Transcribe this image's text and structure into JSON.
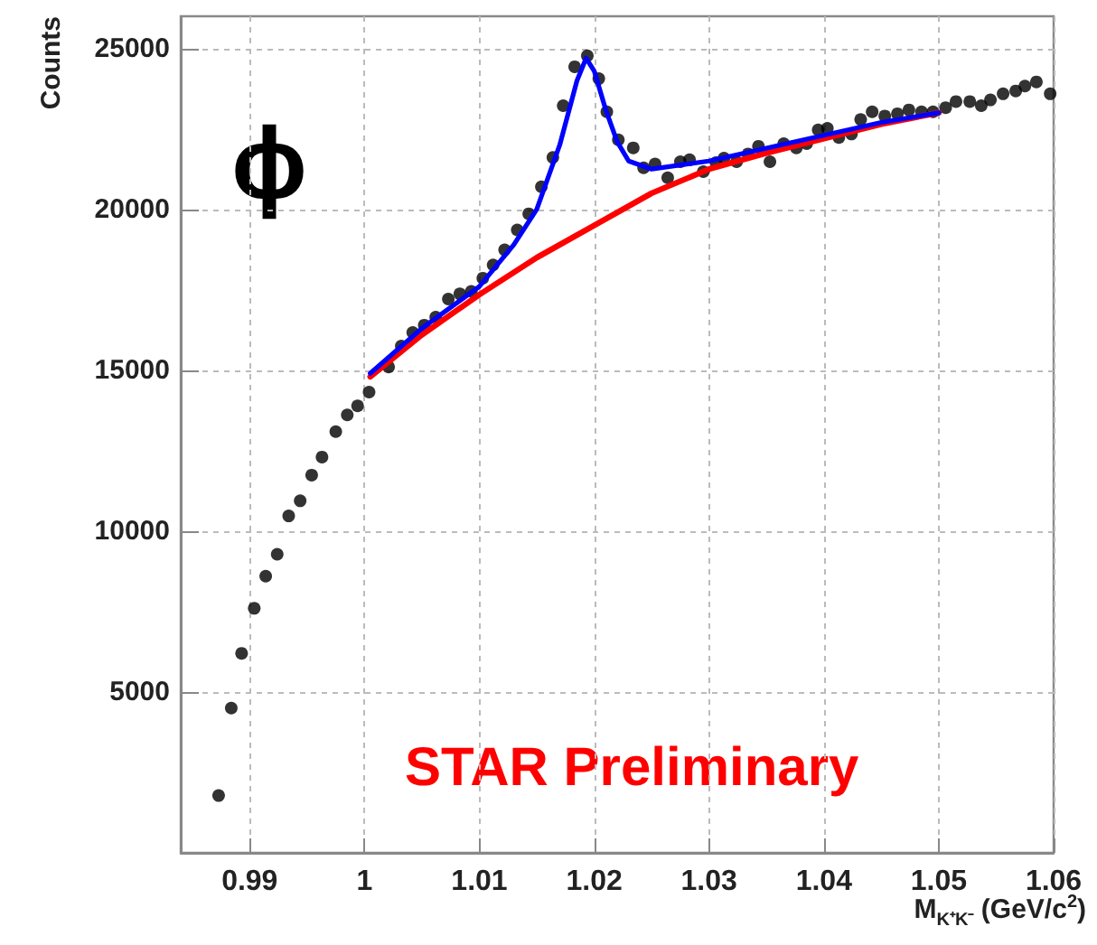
{
  "chart_data": {
    "type": "scatter",
    "xlabel": "M$_{K⁺K⁻}$ (GeV/c$^{2}$)",
    "ylabel": "Counts",
    "annotations": [
      "ϕ",
      "STAR Preliminary"
    ],
    "xlim": [
      0.984,
      1.06
    ],
    "ylim": [
      0,
      26000
    ],
    "xticks": [
      0.99,
      1,
      1.01,
      1.02,
      1.03,
      1.04,
      1.05,
      1.06
    ],
    "yticks": [
      5000,
      10000,
      15000,
      20000,
      25000
    ],
    "grid": true,
    "marker": "circle",
    "series": [
      {
        "color": "#000000",
        "x": [
          0.9873,
          0.9884,
          0.9893,
          0.9904,
          0.9914,
          0.9924,
          0.9934,
          0.9944,
          0.9954,
          0.9963,
          0.9975,
          0.9985,
          0.9994,
          1.0004,
          1.0021,
          1.0032,
          1.0042,
          1.0052,
          1.0062,
          1.0073,
          1.0083,
          1.0093,
          1.0103,
          1.0112,
          1.0122,
          1.0133,
          1.0143,
          1.0154,
          1.0164,
          1.0173,
          1.0183,
          1.0194,
          1.0204,
          1.0211,
          1.0221,
          1.0234,
          1.0243,
          1.0253,
          1.0264,
          1.0275,
          1.0283,
          1.0295,
          1.0306,
          1.0313,
          1.0324,
          1.0334,
          1.0343,
          1.0353,
          1.0365,
          1.0376,
          1.0385,
          1.0395,
          1.0403,
          1.0413,
          1.0424,
          1.0432,
          1.0442,
          1.0453,
          1.0464,
          1.0474,
          1.0485,
          1.0495,
          1.0506,
          1.0515,
          1.0527,
          1.0537,
          1.0545,
          1.0556,
          1.0567,
          1.0575,
          1.0585,
          1.0597
        ],
        "values": [
          1780,
          4500,
          6200,
          7600,
          8600,
          9280,
          10470,
          10940,
          11740,
          12300,
          13090,
          13610,
          13890,
          14320,
          15100,
          15750,
          16170,
          16400,
          16650,
          17210,
          17370,
          17450,
          17860,
          18270,
          18740,
          19360,
          19860,
          20700,
          21610,
          23220,
          24430,
          24770,
          24060,
          23030,
          22160,
          21910,
          21290,
          21410,
          20980,
          21480,
          21540,
          21170,
          21450,
          21590,
          21480,
          21720,
          21960,
          21480,
          22040,
          21910,
          22040,
          22470,
          22520,
          22230,
          22340,
          22790,
          23030,
          22900,
          22970,
          23090,
          23030,
          23030,
          23160,
          23350,
          23350,
          23220,
          23400,
          23590,
          23680,
          23830,
          23960,
          23590
        ]
      },
      {
        "type": "line",
        "color": "#ff0000",
        "marker": "none",
        "line_style": "solid",
        "x": [
          1.0005,
          1.005,
          1.01,
          1.015,
          1.02,
          1.025,
          1.03,
          1.035,
          1.04,
          1.045,
          1.05
        ],
        "values": [
          14800,
          16100,
          17350,
          18500,
          19500,
          20500,
          21250,
          21750,
          22200,
          22650,
          23000
        ]
      },
      {
        "type": "line",
        "color": "#0000ff",
        "marker": "none",
        "line_style": "solid",
        "x": [
          1.0005,
          1.005,
          1.01,
          1.013,
          1.015,
          1.017,
          1.0185,
          1.0193,
          1.02,
          1.021,
          1.022,
          1.023,
          1.025,
          1.03,
          1.035,
          1.04,
          1.045,
          1.05
        ],
        "values": [
          14900,
          16300,
          17600,
          18900,
          20000,
          22000,
          24000,
          24700,
          24300,
          23100,
          22100,
          21500,
          21250,
          21500,
          21900,
          22300,
          22700,
          23000
        ]
      }
    ]
  }
}
